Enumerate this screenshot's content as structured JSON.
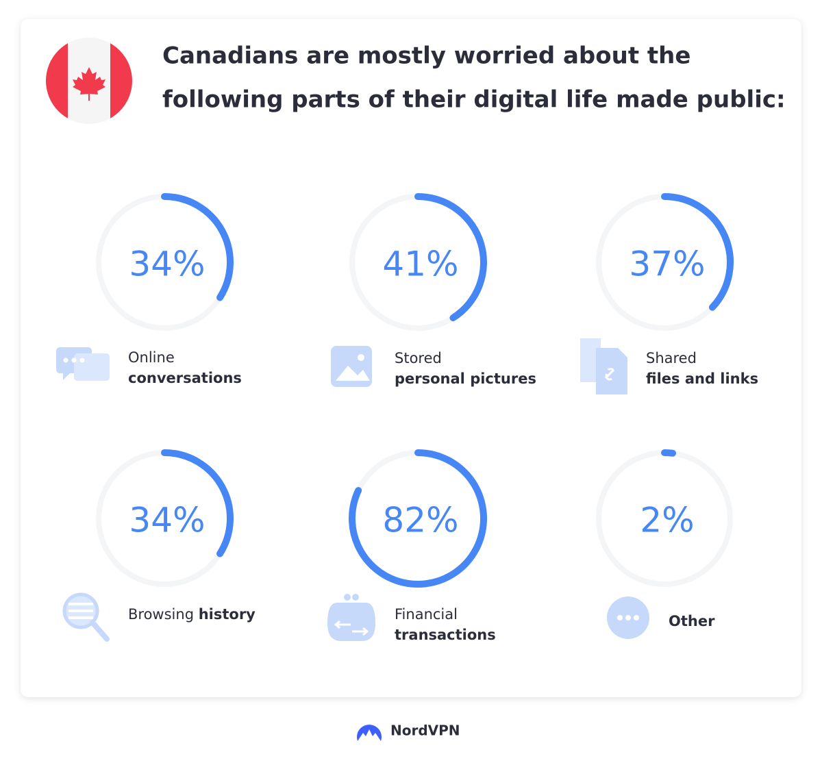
{
  "title_lines": [
    "Canadians are mostly worried about the",
    "following parts of their digital life made public:"
  ],
  "items": [
    {
      "value": 34,
      "value_label": "34%",
      "lines": [
        [
          {
            "text": "Online",
            "bold": false
          }
        ],
        [
          {
            "text": "conversations",
            "bold": true
          }
        ]
      ]
    },
    {
      "value": 41,
      "value_label": "41%",
      "lines": [
        [
          {
            "text": "Stored",
            "bold": false
          }
        ],
        [
          {
            "text": "personal pictures",
            "bold": true
          }
        ]
      ]
    },
    {
      "value": 37,
      "value_label": "37%",
      "lines": [
        [
          {
            "text": "Shared",
            "bold": false
          }
        ],
        [
          {
            "text": "files and links",
            "bold": true
          }
        ]
      ]
    },
    {
      "value": 34,
      "value_label": "34%",
      "lines": [
        [
          {
            "text": "Browsing ",
            "bold": false
          },
          {
            "text": "history",
            "bold": true
          }
        ]
      ]
    },
    {
      "value": 82,
      "value_label": "82%",
      "lines": [
        [
          {
            "text": "Financial",
            "bold": false
          }
        ],
        [
          {
            "text": "transactions",
            "bold": true
          }
        ]
      ]
    },
    {
      "value": 2,
      "value_label": "2%",
      "lines": [
        [
          {
            "text": "Other",
            "bold": true
          }
        ]
      ]
    }
  ],
  "color": "#4687f5",
  "brand": "NordVPN"
}
